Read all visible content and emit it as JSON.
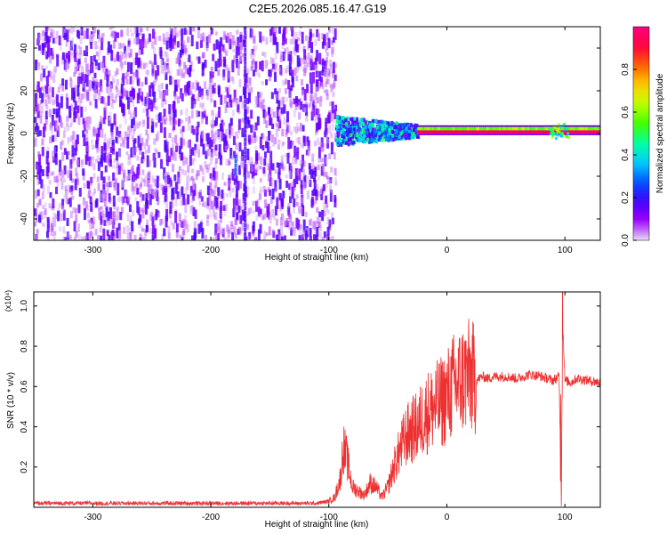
{
  "title": "C2E5.2026.085.16.47.G19",
  "chart_data": [
    {
      "type": "heatmap",
      "xlabel": "Height of straight line (km)",
      "ylabel": "Frequency (Hz)",
      "xlim": [
        -350,
        130
      ],
      "ylim": [
        -50,
        50
      ],
      "x_ticks": [
        -300,
        -200,
        -100,
        0,
        100
      ],
      "y_ticks": [
        -40,
        -20,
        0,
        20,
        40
      ],
      "colorbar": {
        "label": "Normalized spectral amplitude",
        "range": [
          0,
          1
        ],
        "ticks": [
          "0.0",
          "0.2",
          "0.4",
          "0.6",
          "0.8"
        ],
        "colors": [
          "#e8dcf5",
          "#a000ff",
          "#4000ff",
          "#0050ff",
          "#00d0ff",
          "#00ffa0",
          "#40ff00",
          "#c0ff00",
          "#ffd000",
          "#ff6000",
          "#ff0040",
          "#ff0080"
        ]
      },
      "regions": [
        {
          "x_from": -350,
          "x_to": -95,
          "freq_from": -50,
          "freq_to": 50,
          "amplitude": [
            0.0,
            0.15
          ]
        },
        {
          "x_from": -95,
          "x_to": -25,
          "freq_from": -6,
          "freq_to": 8,
          "amplitude": [
            0.1,
            0.5
          ]
        },
        {
          "x_from": -25,
          "x_to": 130,
          "freq_from": 0,
          "freq_to": 3,
          "amplitude": [
            0.7,
            1.0
          ]
        }
      ],
      "line_features": [
        {
          "x": -172,
          "freq_from": -50,
          "freq_to": 50
        },
        {
          "x": -180,
          "freq_from": -20,
          "freq_to": -10
        }
      ]
    },
    {
      "type": "line",
      "xlabel": "Height of straight line (km)",
      "ylabel": "SNR (10 * v/v)",
      "y_multiplier": "(x10⁴)",
      "xlim": [
        -350,
        130
      ],
      "ylim": [
        0,
        1.07
      ],
      "x_ticks": [
        -300,
        -200,
        -100,
        0,
        100
      ],
      "y_ticks": [
        0.2,
        0.4,
        0.6,
        0.8,
        1.0
      ],
      "series": [
        {
          "color": "#ee3030",
          "x": [
            -350,
            -300,
            -250,
            -200,
            -150,
            -110,
            -100,
            -95,
            -90,
            -88,
            -85,
            -80,
            -75,
            -70,
            -65,
            -60,
            -55,
            -50,
            -45,
            -40,
            -35,
            -30,
            -25,
            -20,
            -15,
            -10,
            -5,
            0,
            5,
            10,
            15,
            20,
            25,
            30,
            35,
            40,
            50,
            60,
            70,
            80,
            90,
            95,
            97,
            98,
            100,
            105,
            110,
            120,
            130
          ],
          "y": [
            0.02,
            0.02,
            0.02,
            0.02,
            0.02,
            0.02,
            0.03,
            0.05,
            0.15,
            0.3,
            0.25,
            0.1,
            0.08,
            0.06,
            0.12,
            0.1,
            0.05,
            0.1,
            0.2,
            0.28,
            0.35,
            0.38,
            0.4,
            0.45,
            0.48,
            0.5,
            0.52,
            0.55,
            0.6,
            0.62,
            0.65,
            0.65,
            0.63,
            0.65,
            0.64,
            0.65,
            0.65,
            0.64,
            0.66,
            0.65,
            0.63,
            0.65,
            0.1,
            0.95,
            0.63,
            0.62,
            0.64,
            0.63,
            0.62
          ]
        }
      ]
    }
  ]
}
